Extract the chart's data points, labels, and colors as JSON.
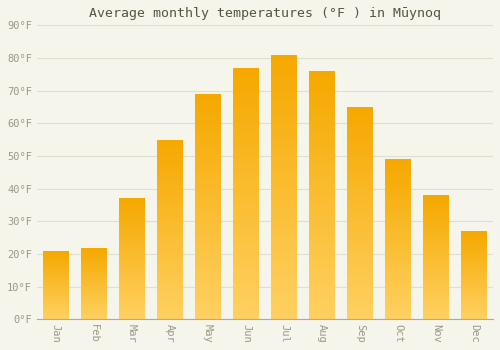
{
  "title": "Average monthly temperatures (°F ) in Mūynoq",
  "months": [
    "Jan",
    "Feb",
    "Mar",
    "Apr",
    "May",
    "Jun",
    "Jul",
    "Aug",
    "Sep",
    "Oct",
    "Nov",
    "Dec"
  ],
  "values": [
    21,
    22,
    37,
    55,
    69,
    77,
    81,
    76,
    65,
    49,
    38,
    27
  ],
  "bar_color_bottom": "#FFD060",
  "bar_color_top": "#F5A800",
  "background_color": "#F5F5EC",
  "grid_color": "#E0E0D0",
  "text_color": "#999988",
  "title_color": "#555544",
  "ylim": [
    0,
    90
  ],
  "yticks": [
    0,
    10,
    20,
    30,
    40,
    50,
    60,
    70,
    80,
    90
  ],
  "bar_width": 0.7,
  "figsize": [
    5.0,
    3.5
  ],
  "dpi": 100
}
